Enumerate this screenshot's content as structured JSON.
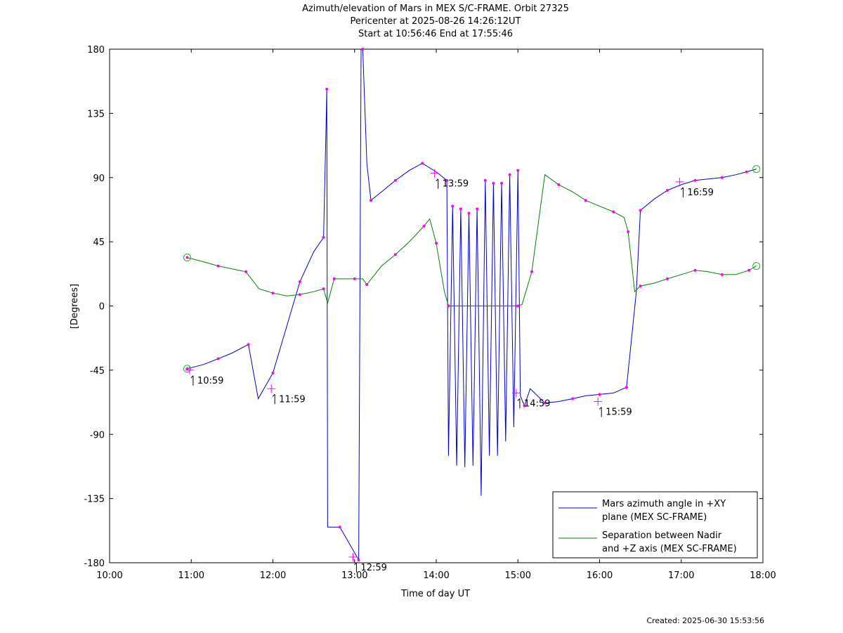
{
  "chart_data": {
    "type": "line",
    "title": "Azimuth/elevation of Mars in MEX S/C-FRAME.  Orbit 27325",
    "subtitle1": "Pericenter at 2025-08-26 14:26:12UT",
    "subtitle2": "Start at 10:56:46 End at 17:55:46",
    "xlabel": "Time of day UT",
    "ylabel": "[Degrees]",
    "xlim": [
      10.0,
      18.0
    ],
    "ylim": [
      -180,
      180
    ],
    "x_ticks": [
      "10:00",
      "11:00",
      "12:00",
      "13:00",
      "14:00",
      "15:00",
      "16:00",
      "17:00",
      "18:00"
    ],
    "y_ticks": [
      "180",
      "135",
      "90",
      "45",
      "0",
      "-45",
      "-90",
      "-135",
      "-180"
    ],
    "legend_position": "bottom-right",
    "grid": false,
    "created": "Created: 2025-06-30 15:53:56",
    "series": [
      {
        "name": "Mars azimuth angle in +XY plane (MEX SC-FRAME)",
        "legend_lines": [
          "Mars azimuth angle in +XY",
          "plane (MEX SC-FRAME)"
        ],
        "color": "#0000cc",
        "points": [
          [
            10.95,
            -44
          ],
          [
            11.15,
            -41
          ],
          [
            11.33,
            -37
          ],
          [
            11.5,
            -33
          ],
          [
            11.7,
            -27
          ],
          [
            11.82,
            -65
          ],
          [
            12.0,
            -47
          ],
          [
            12.15,
            -18
          ],
          [
            12.33,
            17
          ],
          [
            12.5,
            38
          ],
          [
            12.62,
            48
          ],
          [
            12.65,
            125
          ],
          [
            12.66,
            152
          ],
          [
            12.67,
            -155
          ],
          [
            12.82,
            -155
          ],
          [
            12.95,
            -168
          ],
          [
            13.05,
            -178
          ],
          [
            13.08,
            180
          ],
          [
            13.1,
            180
          ],
          [
            13.15,
            100
          ],
          [
            13.2,
            74
          ],
          [
            13.33,
            80
          ],
          [
            13.5,
            88
          ],
          [
            13.67,
            95
          ],
          [
            13.83,
            100
          ],
          [
            14.0,
            94
          ],
          [
            14.13,
            88
          ],
          [
            14.15,
            -105
          ],
          [
            14.2,
            70
          ],
          [
            14.25,
            -112
          ],
          [
            14.3,
            68
          ],
          [
            14.35,
            -113
          ],
          [
            14.4,
            65
          ],
          [
            14.45,
            -112
          ],
          [
            14.5,
            68
          ],
          [
            14.55,
            -133
          ],
          [
            14.6,
            88
          ],
          [
            14.65,
            -105
          ],
          [
            14.7,
            86
          ],
          [
            14.75,
            -105
          ],
          [
            14.8,
            86
          ],
          [
            14.85,
            -95
          ],
          [
            14.9,
            92
          ],
          [
            14.95,
            -85
          ],
          [
            15.0,
            95
          ],
          [
            15.03,
            -63
          ],
          [
            15.08,
            -70
          ],
          [
            15.15,
            -58
          ],
          [
            15.33,
            -68
          ],
          [
            15.5,
            -67
          ],
          [
            15.67,
            -65
          ],
          [
            15.83,
            -63
          ],
          [
            16.0,
            -62
          ],
          [
            16.17,
            -61
          ],
          [
            16.33,
            -57
          ],
          [
            16.45,
            10
          ],
          [
            16.5,
            67
          ],
          [
            16.67,
            75
          ],
          [
            16.83,
            81
          ],
          [
            17.0,
            85
          ],
          [
            17.17,
            88
          ],
          [
            17.33,
            89
          ],
          [
            17.5,
            90
          ],
          [
            17.67,
            92
          ],
          [
            17.8,
            94
          ],
          [
            17.92,
            96
          ]
        ]
      },
      {
        "name": "Separation between Nadir and +Z axis (MEX SC-FRAME)",
        "legend_lines": [
          "Separation between Nadir",
          "and +Z axis (MEX SC-FRAME)"
        ],
        "color": "#008000",
        "points": [
          [
            10.95,
            34
          ],
          [
            11.15,
            31
          ],
          [
            11.33,
            28
          ],
          [
            11.5,
            26
          ],
          [
            11.67,
            24
          ],
          [
            11.83,
            12
          ],
          [
            12.0,
            9
          ],
          [
            12.17,
            7
          ],
          [
            12.33,
            8
          ],
          [
            12.5,
            10
          ],
          [
            12.62,
            12
          ],
          [
            12.67,
            2
          ],
          [
            12.75,
            19
          ],
          [
            12.82,
            19
          ],
          [
            13.0,
            19
          ],
          [
            13.1,
            19
          ],
          [
            13.15,
            15
          ],
          [
            13.33,
            28
          ],
          [
            13.5,
            36
          ],
          [
            13.67,
            45
          ],
          [
            13.85,
            56
          ],
          [
            13.92,
            61
          ],
          [
            14.0,
            44
          ],
          [
            14.1,
            10
          ],
          [
            14.15,
            0
          ],
          [
            14.5,
            0
          ],
          [
            15.0,
            0
          ],
          [
            15.05,
            1
          ],
          [
            15.17,
            24
          ],
          [
            15.33,
            92
          ],
          [
            15.5,
            85
          ],
          [
            15.67,
            80
          ],
          [
            15.83,
            74
          ],
          [
            16.0,
            70
          ],
          [
            16.17,
            66
          ],
          [
            16.3,
            62
          ],
          [
            16.35,
            52
          ],
          [
            16.43,
            10
          ],
          [
            16.5,
            14
          ],
          [
            16.67,
            16
          ],
          [
            16.83,
            19
          ],
          [
            17.0,
            22
          ],
          [
            17.17,
            25
          ],
          [
            17.33,
            24
          ],
          [
            17.5,
            22
          ],
          [
            17.67,
            22
          ],
          [
            17.83,
            25
          ],
          [
            17.92,
            28
          ]
        ]
      }
    ],
    "labels": [
      {
        "text": "10:59",
        "x": 10.98,
        "y": -45
      },
      {
        "text": "11:59",
        "x": 11.98,
        "y": -58
      },
      {
        "text": "12:59",
        "x": 12.98,
        "y": -176
      },
      {
        "text": "13:59",
        "x": 13.98,
        "y": 93
      },
      {
        "text": "14:59",
        "x": 14.98,
        "y": -61
      },
      {
        "text": "15:59",
        "x": 15.98,
        "y": -67
      },
      {
        "text": "16:59",
        "x": 16.98,
        "y": 87
      }
    ]
  }
}
